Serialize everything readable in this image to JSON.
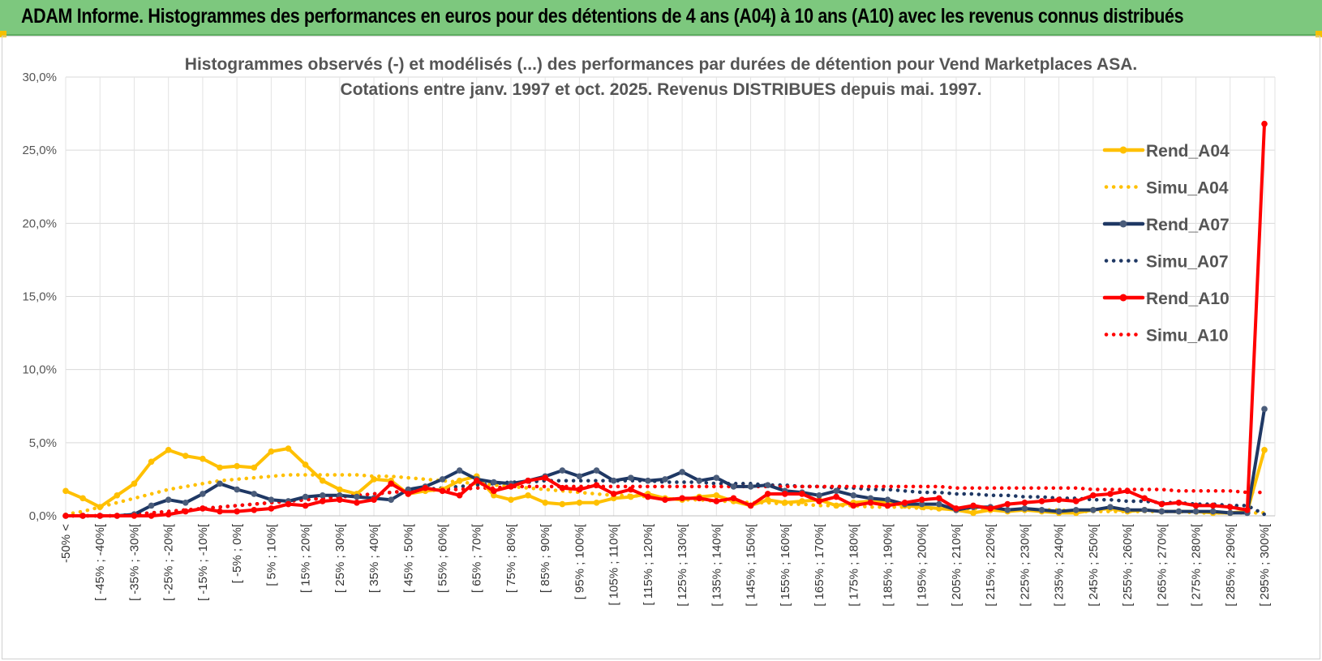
{
  "banner": {
    "title": "ADAM Informe. Histogrammes des performances en euros pour des détentions de 4 ans (A04) à 10 ans (A10) avec les revenus connus distribués"
  },
  "chart_data": {
    "type": "line",
    "title_line1": "Histogrammes observés (-) et modélisés (...) des performances par durées de détention pour Vend Marketplaces ASA.",
    "title_line2": "Cotations entre janv. 1997 et oct. 2025.  Revenus DISTRIBUES depuis mai. 1997.",
    "ylim": [
      0,
      30
    ],
    "yticks": [
      0,
      5,
      10,
      15,
      20,
      25,
      30
    ],
    "ytick_labels": [
      "0,0%",
      "5,0%",
      "10,0%",
      "15,0%",
      "20,0%",
      "25,0%",
      "30,0%"
    ],
    "grid": true,
    "legend_position": "right",
    "categories": [
      "-50% <",
      "[ -50% ; -45%[",
      "[ -45% ; -40%[",
      "[ -40% ; -35%[",
      "[ -35% ; -30%[",
      "[ -30% ; -25%[",
      "[ -25% ; -20%[",
      "[ -20% ; -15%[",
      "[ -15% ; -10%[",
      "[ -10% ; -5%[",
      "[ -5% ; 0%[",
      "[ 0% ; 5%[",
      "[ 5% ; 10%[",
      "[ 10% ; 15%[",
      "[ 15% ; 20%[",
      "[ 20% ; 25%[",
      "[ 25% ; 30%[",
      "[ 30% ; 35%[",
      "[ 35% ; 40%[",
      "[ 40% ; 45%[",
      "[ 45% ; 50%[",
      "[ 50% ; 55%[",
      "[ 55% ; 60%[",
      "[ 60% ; 65%[",
      "[ 65% ; 70%[",
      "[ 70% ; 75%[",
      "[ 75% ; 80%[",
      "[ 80% ; 85%[",
      "[ 85% ; 90%[",
      "[ 90% ; 95%[",
      "[ 95% ; 100%[",
      "[ 100% ; 105%[",
      "[ 105% ; 110%[",
      "[ 110% ; 115%[",
      "[ 115% ; 120%[",
      "[ 120% ; 125%[",
      "[ 125% ; 130%[",
      "[ 130% ; 135%[",
      "[ 135% ; 140%[",
      "[ 140% ; 145%[",
      "[ 145% ; 150%[",
      "[ 150% ; 155%[",
      "[ 155% ; 160%[",
      "[ 160% ; 165%[",
      "[ 165% ; 170%[",
      "[ 170% ; 175%[",
      "[ 175% ; 180%[",
      "[ 180% ; 185%[",
      "[ 185% ; 190%[",
      "[ 190% ; 195%[",
      "[ 195% ; 200%[",
      "[ 200% ; 205%[",
      "[ 205% ; 210%[",
      "[ 210% ; 215%[",
      "[ 215% ; 220%[",
      "[ 220% ; 225%[",
      "[ 225% ; 230%[",
      "[ 230% ; 235%[",
      "[ 235% ; 240%[",
      "[ 240% ; 245%[",
      "[ 245% ; 250%[",
      "[ 250% ; 255%[",
      "[ 255% ; 260%[",
      "[ 260% ; 265%[",
      "[ 265% ; 270%[",
      "[ 270% ; 275%[",
      "[ 275% ; 280%[",
      "[ 280% ; 285%[",
      "[ 285% ; 290%[",
      "[ 290% ; 295%[",
      "[ 295% ; 300%["
    ],
    "x_label_step": 2,
    "series": [
      {
        "name": "Rend_A04",
        "style": "solid",
        "color": "#ffc000",
        "values": [
          1.7,
          1.2,
          0.6,
          1.4,
          2.2,
          3.7,
          4.5,
          4.1,
          3.9,
          3.3,
          3.4,
          3.3,
          4.4,
          4.6,
          3.5,
          2.4,
          1.8,
          1.5,
          2.5,
          2.4,
          1.5,
          1.7,
          1.8,
          2.4,
          2.7,
          1.4,
          1.1,
          1.4,
          0.9,
          0.8,
          0.9,
          0.9,
          1.2,
          1.3,
          1.5,
          1.2,
          1.1,
          1.3,
          1.4,
          1.0,
          0.7,
          1.1,
          0.9,
          1.0,
          1.1,
          0.7,
          0.9,
          1.0,
          0.9,
          0.7,
          0.6,
          0.5,
          0.4,
          0.2,
          0.4,
          0.3,
          0.4,
          0.3,
          0.2,
          0.2,
          0.4,
          0.5,
          0.3,
          0.4,
          0.3,
          0.3,
          0.3,
          0.2,
          0.2,
          0.3,
          4.5
        ]
      },
      {
        "name": "Simu_A04",
        "style": "dotted",
        "color": "#ffc000",
        "values": [
          0.1,
          0.3,
          0.6,
          0.9,
          1.2,
          1.5,
          1.8,
          2.0,
          2.2,
          2.4,
          2.5,
          2.6,
          2.7,
          2.8,
          2.8,
          2.8,
          2.8,
          2.8,
          2.7,
          2.7,
          2.6,
          2.5,
          2.4,
          2.3,
          2.2,
          2.1,
          2.0,
          1.9,
          1.8,
          1.7,
          1.6,
          1.5,
          1.4,
          1.4,
          1.3,
          1.2,
          1.1,
          1.1,
          1.0,
          1.0,
          0.9,
          0.9,
          0.8,
          0.8,
          0.7,
          0.7,
          0.7,
          0.6,
          0.6,
          0.6,
          0.5,
          0.5,
          0.5,
          0.5,
          0.4,
          0.4,
          0.4,
          0.4,
          0.4,
          0.3,
          0.3,
          0.3,
          0.3,
          0.3,
          0.3,
          0.3,
          0.2,
          0.2,
          0.2,
          0.2,
          0.2
        ]
      },
      {
        "name": "Rend_A07",
        "style": "solid",
        "color": "#1f3864",
        "values": [
          0.0,
          0.0,
          0.0,
          0.0,
          0.1,
          0.7,
          1.1,
          0.9,
          1.5,
          2.2,
          1.8,
          1.5,
          1.1,
          1.0,
          1.3,
          1.4,
          1.4,
          1.3,
          1.2,
          1.1,
          1.8,
          2.0,
          2.5,
          3.1,
          2.5,
          2.3,
          2.2,
          2.4,
          2.7,
          3.1,
          2.7,
          3.1,
          2.4,
          2.6,
          2.4,
          2.5,
          3.0,
          2.4,
          2.6,
          2.0,
          2.0,
          2.1,
          1.7,
          1.6,
          1.4,
          1.7,
          1.4,
          1.2,
          1.1,
          0.8,
          0.8,
          0.8,
          0.4,
          0.6,
          0.6,
          0.4,
          0.5,
          0.4,
          0.3,
          0.4,
          0.4,
          0.6,
          0.4,
          0.4,
          0.3,
          0.3,
          0.3,
          0.3,
          0.2,
          0.2,
          7.3
        ]
      },
      {
        "name": "Simu_A07",
        "style": "dotted",
        "color": "#1f3864",
        "values": [
          0.0,
          0.0,
          0.0,
          0.0,
          0.1,
          0.2,
          0.3,
          0.4,
          0.5,
          0.6,
          0.7,
          0.8,
          0.9,
          1.0,
          1.1,
          1.2,
          1.3,
          1.4,
          1.5,
          1.6,
          1.7,
          1.8,
          1.9,
          2.0,
          2.1,
          2.2,
          2.3,
          2.3,
          2.4,
          2.4,
          2.4,
          2.4,
          2.4,
          2.4,
          2.4,
          2.3,
          2.3,
          2.3,
          2.2,
          2.2,
          2.2,
          2.1,
          2.1,
          2.0,
          2.0,
          1.9,
          1.9,
          1.8,
          1.8,
          1.7,
          1.6,
          1.6,
          1.5,
          1.5,
          1.4,
          1.4,
          1.3,
          1.3,
          1.2,
          1.2,
          1.1,
          1.1,
          1.0,
          1.0,
          0.9,
          0.9,
          0.8,
          0.8,
          0.7,
          0.7,
          0.1
        ]
      },
      {
        "name": "Rend_A10",
        "style": "solid",
        "color": "#ff0000",
        "values": [
          0.0,
          0.0,
          0.0,
          0.0,
          0.0,
          0.0,
          0.1,
          0.3,
          0.5,
          0.3,
          0.3,
          0.4,
          0.5,
          0.8,
          0.7,
          1.0,
          1.1,
          0.9,
          1.1,
          2.2,
          1.5,
          1.9,
          1.7,
          1.4,
          2.4,
          1.7,
          2.0,
          2.4,
          2.6,
          1.9,
          1.8,
          2.1,
          1.5,
          1.8,
          1.3,
          1.1,
          1.2,
          1.2,
          1.0,
          1.2,
          0.7,
          1.5,
          1.5,
          1.5,
          1.0,
          1.3,
          0.7,
          0.9,
          0.7,
          0.9,
          1.1,
          1.2,
          0.5,
          0.7,
          0.5,
          0.8,
          0.9,
          1.0,
          1.1,
          1.0,
          1.4,
          1.5,
          1.7,
          1.2,
          0.8,
          0.9,
          0.7,
          0.7,
          0.6,
          0.4,
          26.8
        ]
      },
      {
        "name": "Simu_A10",
        "style": "dotted",
        "color": "#ff0000",
        "values": [
          0.0,
          0.0,
          0.0,
          0.0,
          0.1,
          0.2,
          0.3,
          0.4,
          0.5,
          0.6,
          0.7,
          0.8,
          0.9,
          1.0,
          1.1,
          1.2,
          1.3,
          1.4,
          1.5,
          1.6,
          1.7,
          1.7,
          1.8,
          1.8,
          1.9,
          1.9,
          2.0,
          2.0,
          2.0,
          2.0,
          2.0,
          2.0,
          2.0,
          2.0,
          2.0,
          2.0,
          2.0,
          2.0,
          2.0,
          2.0,
          2.0,
          2.0,
          2.0,
          2.0,
          2.0,
          2.0,
          2.0,
          2.0,
          2.0,
          2.0,
          2.0,
          2.0,
          1.9,
          1.9,
          1.9,
          1.9,
          1.9,
          1.9,
          1.9,
          1.9,
          1.8,
          1.8,
          1.8,
          1.8,
          1.8,
          1.7,
          1.7,
          1.7,
          1.7,
          1.6,
          1.6
        ]
      }
    ]
  }
}
